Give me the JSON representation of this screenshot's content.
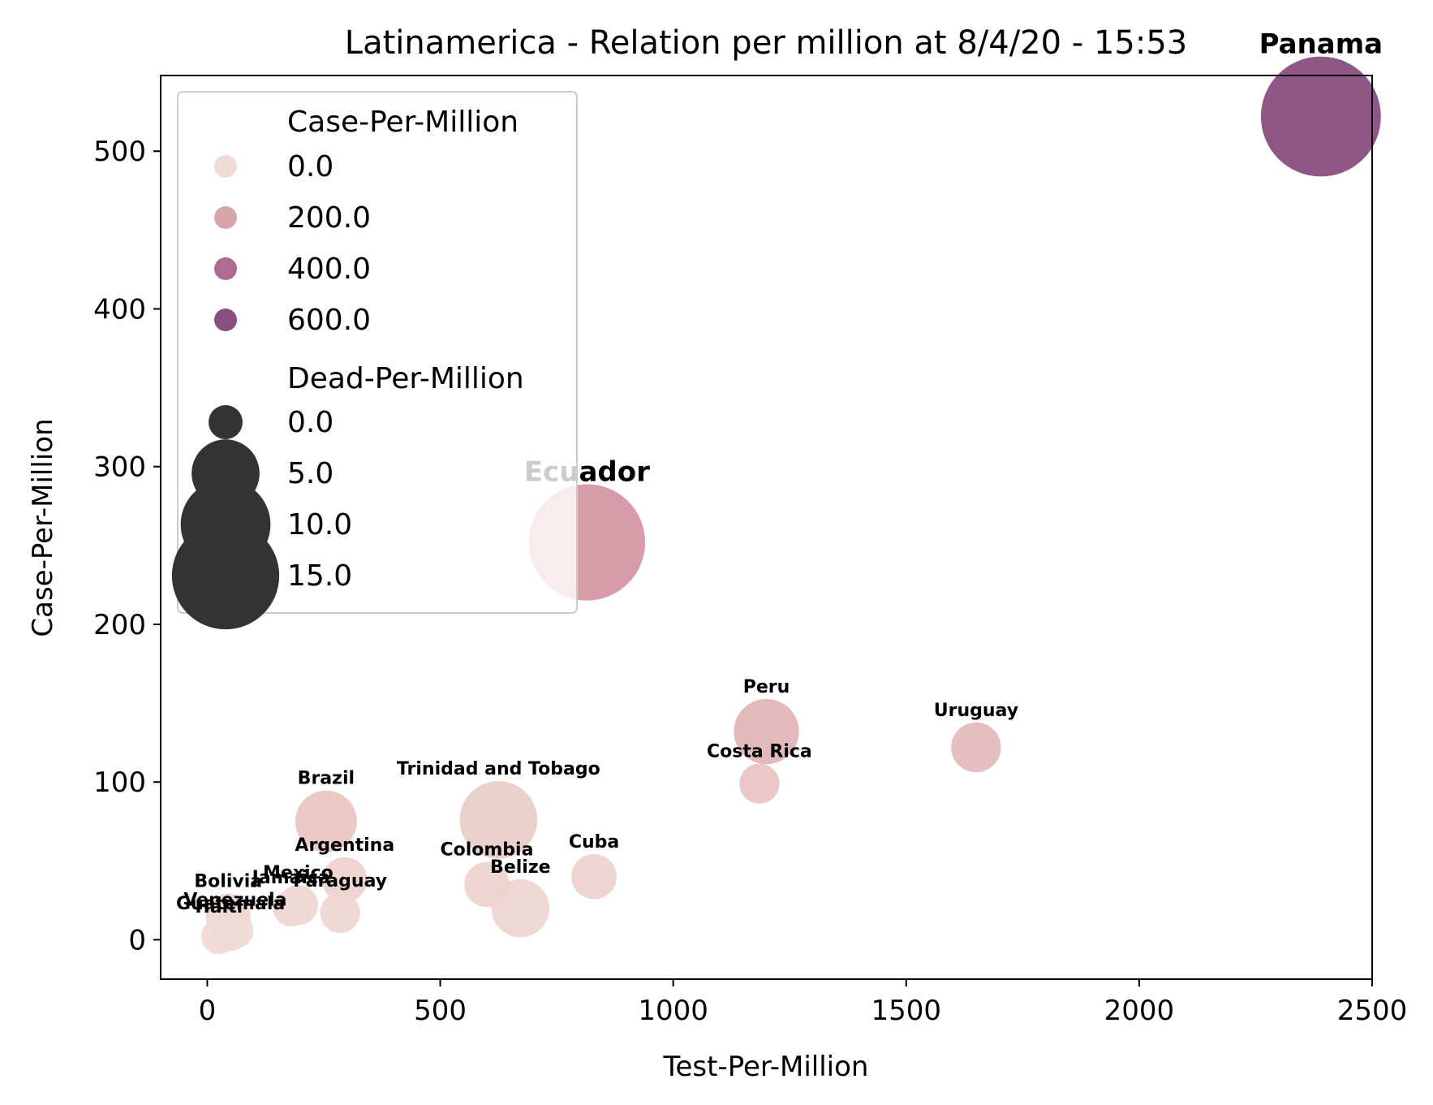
{
  "chart_data": {
    "type": "scatter",
    "title": "Latinamerica - Relation per million at 8/4/20 - 15:53",
    "xlabel": "Test-Per-Million",
    "ylabel": "Case-Per-Million",
    "xlim": [
      -100,
      2500
    ],
    "ylim": [
      -25,
      548
    ],
    "xticks": [
      0,
      500,
      1000,
      1500,
      2000,
      2500
    ],
    "yticks": [
      0,
      100,
      200,
      300,
      400,
      500
    ],
    "grid": false,
    "legend_position": "upper-left",
    "hue_legend": {
      "title": "Case-Per-Million",
      "levels": [
        {
          "label": "0.0",
          "color": "#f0dad6"
        },
        {
          "label": "200.0",
          "color": "#d9a5ad"
        },
        {
          "label": "400.0",
          "color": "#ae6b91"
        },
        {
          "label": "600.0",
          "color": "#884e7e"
        }
      ]
    },
    "size_legend": {
      "title": "Dead-Per-Million",
      "levels": [
        {
          "label": "0.0",
          "value": 0
        },
        {
          "label": "5.0",
          "value": 5
        },
        {
          "label": "10.0",
          "value": 10
        },
        {
          "label": "15.0",
          "value": 15
        }
      ]
    },
    "points": [
      {
        "name": "Panama",
        "x": 2390,
        "y": 522,
        "dead": 15,
        "color": "#884e7e",
        "label_size": "large"
      },
      {
        "name": "Ecuador",
        "x": 815,
        "y": 252,
        "dead": 14,
        "color": "#d596a4",
        "label_size": "large"
      },
      {
        "name": "Peru",
        "x": 1200,
        "y": 132,
        "dead": 3.5,
        "color": "#e2b5b8"
      },
      {
        "name": "Uruguay",
        "x": 1650,
        "y": 122,
        "dead": 1.5,
        "color": "#e4bcbd"
      },
      {
        "name": "Costa Rica",
        "x": 1185,
        "y": 99,
        "dead": 0.5,
        "color": "#e8c5c4"
      },
      {
        "name": "Brazil",
        "x": 255,
        "y": 75,
        "dead": 3,
        "color": "#e9c6c4"
      },
      {
        "name": "Trinidad and Tobago",
        "x": 625,
        "y": 76,
        "dead": 5.5,
        "color": "#ebcdc9"
      },
      {
        "name": "Argentina",
        "x": 295,
        "y": 38,
        "dead": 1,
        "color": "#edd3cf"
      },
      {
        "name": "Colombia",
        "x": 600,
        "y": 35,
        "dead": 1,
        "color": "#edd3cf"
      },
      {
        "name": "Cuba",
        "x": 830,
        "y": 40,
        "dead": 1,
        "color": "#edd3cf"
      },
      {
        "name": "Belize",
        "x": 672,
        "y": 20,
        "dead": 2.5,
        "color": "#eed5d1"
      },
      {
        "name": "Mexico",
        "x": 195,
        "y": 22,
        "dead": 0.5,
        "color": "#efd7d3"
      },
      {
        "name": "Jamaica",
        "x": 180,
        "y": 20,
        "dead": 0.2,
        "color": "#efd8d4"
      },
      {
        "name": "Paraguay",
        "x": 285,
        "y": 17,
        "dead": 0.5,
        "color": "#efd7d3"
      },
      {
        "name": "Bolivia",
        "x": 45,
        "y": 15,
        "dead": 1,
        "color": "#efd8d4"
      },
      {
        "name": "Venezuela",
        "x": 60,
        "y": 6,
        "dead": 0.2,
        "color": "#f0dad6"
      },
      {
        "name": "Guatemala",
        "x": 50,
        "y": 4,
        "dead": 0.1,
        "color": "#f0dad6"
      },
      {
        "name": "Haiti",
        "x": 25,
        "y": 2,
        "dead": 0.1,
        "color": "#f0dad6"
      }
    ]
  }
}
